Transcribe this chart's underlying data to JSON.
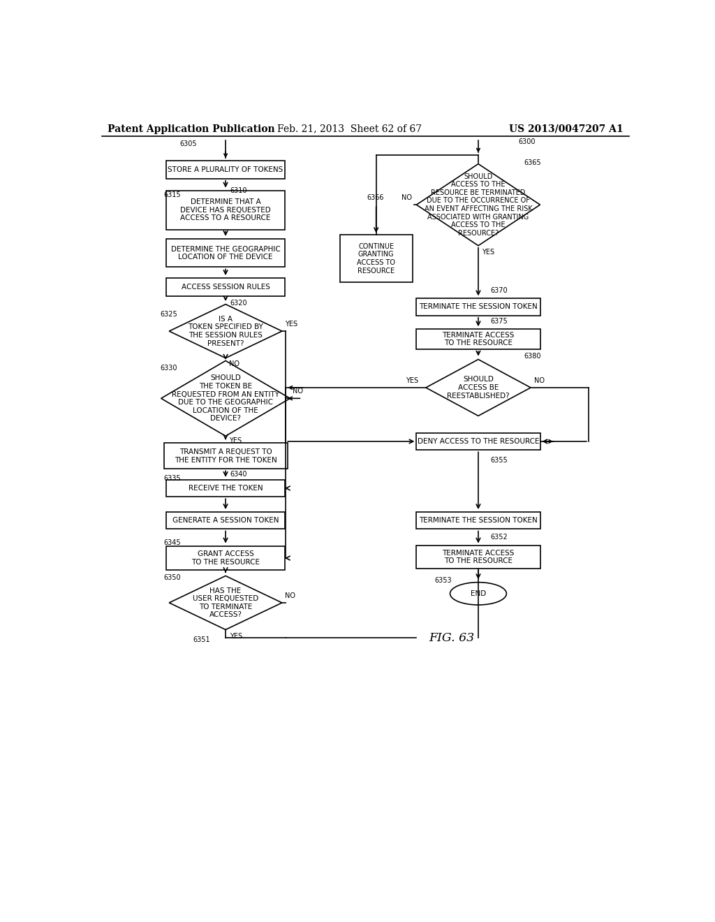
{
  "title_left": "Patent Application Publication",
  "title_center": "Feb. 21, 2013  Sheet 62 of 67",
  "title_right": "US 2013/0047207 A1",
  "fig_label": "FIG. 63",
  "background": "#ffffff",
  "line_color": "#000000",
  "text_color": "#000000",
  "font_size": 7.5,
  "header_font_size": 10
}
